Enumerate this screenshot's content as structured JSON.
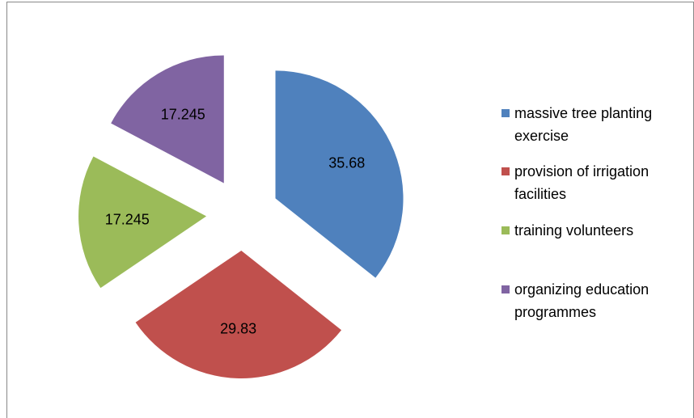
{
  "chart_data": {
    "type": "pie",
    "categories": [
      "massive tree planting exercise",
      "provision of irrigation facilities",
      "training volunteers",
      "organizing education programmes"
    ],
    "values": [
      35.68,
      29.83,
      17.245,
      17.245
    ],
    "colors": [
      "#4f81bd",
      "#c0504d",
      "#9bbb59",
      "#8064a2"
    ],
    "exploded": true,
    "legend": "right"
  }
}
